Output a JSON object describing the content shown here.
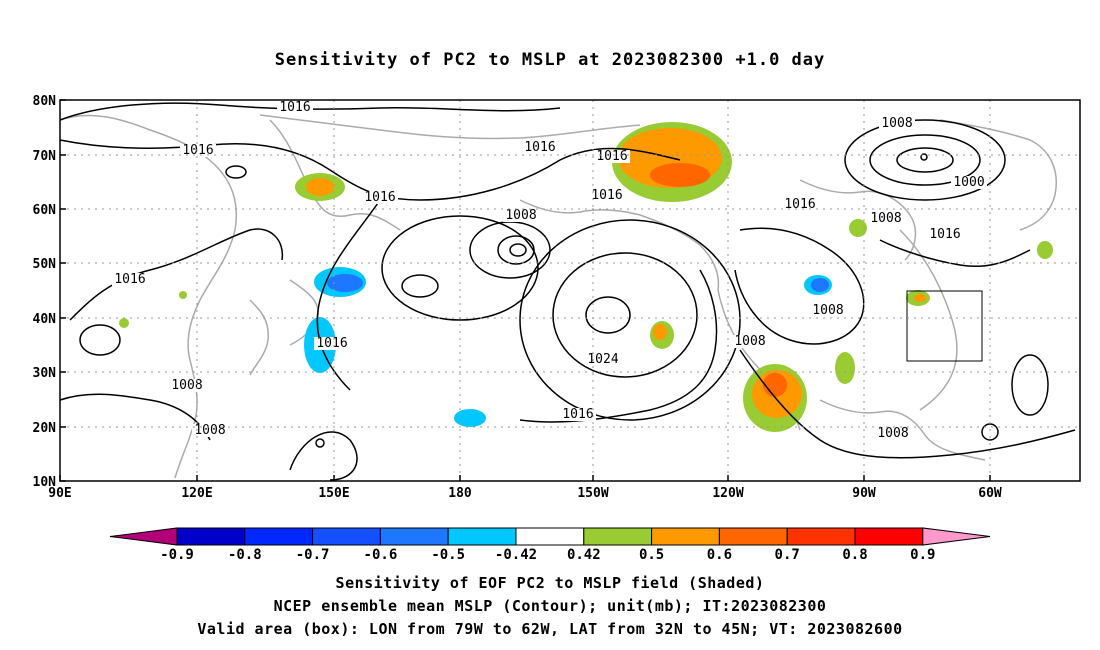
{
  "title": "Sensitivity of PC2 to MSLP at 2023082300 +1.0 day",
  "axes": {
    "lon_ticks": [
      "90E",
      "120E",
      "150E",
      "180",
      "150W",
      "120W",
      "90W",
      "60W"
    ],
    "lat_ticks": [
      "80N",
      "70N",
      "60N",
      "50N",
      "40N",
      "30N",
      "20N",
      "10N"
    ]
  },
  "colorbar": {
    "labels": [
      "-0.9",
      "-0.8",
      "-0.7",
      "-0.6",
      "-0.5",
      "-0.42",
      "0.42",
      "0.5",
      "0.6",
      "0.7",
      "0.8",
      "0.9"
    ],
    "colors": [
      "#b40078",
      "#0000c8",
      "#0028ff",
      "#1450ff",
      "#1e78ff",
      "#00c8ff",
      "#ffffff",
      "#99cc33",
      "#ff9900",
      "#ff6600",
      "#ff3300",
      "#ff0000",
      "#ff99cc"
    ]
  },
  "contour_labels": [
    "1016",
    "1016",
    "1016",
    "1016",
    "1016",
    "1016",
    "1016",
    "1016",
    "1016",
    "1016",
    "1008",
    "1008",
    "1008",
    "1008",
    "1008",
    "1008",
    "1008",
    "1008",
    "1000",
    "1024",
    "1016"
  ],
  "validation_box": {
    "lon_from": "79W",
    "lon_to": "62W",
    "lat_from": "32N",
    "lat_to": "45N"
  },
  "captions": [
    "Sensitivity of EOF PC2 to MSLP field (Shaded)",
    "NCEP ensemble mean MSLP (Contour); unit(mb); IT:2023082300",
    "Valid area (box): LON from 79W to 62W, LAT from 32N to 45N; VT: 2023082600"
  ]
}
